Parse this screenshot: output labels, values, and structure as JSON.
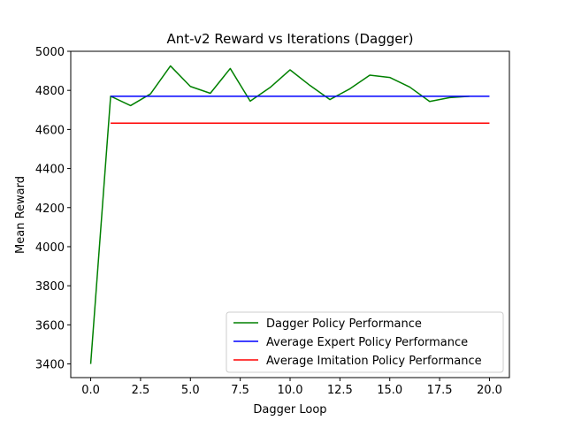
{
  "chart_data": {
    "type": "line",
    "title": "Ant-v2 Reward vs Iterations (Dagger)",
    "xlabel": "Dagger Loop",
    "ylabel": "Mean Reward",
    "xlim": [
      -1,
      21
    ],
    "ylim": [
      3330,
      5000
    ],
    "x_ticks": [
      0.0,
      2.5,
      5.0,
      7.5,
      10.0,
      12.5,
      15.0,
      17.5,
      20.0
    ],
    "x_tick_labels": [
      "0.0",
      "2.5",
      "5.0",
      "7.5",
      "10.0",
      "12.5",
      "15.0",
      "17.5",
      "20.0"
    ],
    "y_ticks": [
      3400,
      3600,
      3800,
      4000,
      4200,
      4400,
      4600,
      4800,
      5000
    ],
    "y_tick_labels": [
      "3400",
      "3600",
      "3800",
      "4000",
      "4200",
      "4400",
      "4600",
      "4800",
      "5000"
    ],
    "grid": false,
    "legend_position": "lower-right",
    "series": [
      {
        "name": "Dagger Policy Performance",
        "color": "#008000",
        "x": [
          0,
          1,
          2,
          3,
          4,
          5,
          6,
          7,
          8,
          9,
          10,
          11,
          12,
          13,
          14,
          15,
          16,
          17,
          18,
          19
        ],
        "y": [
          3400,
          4770,
          4722,
          4782,
          4925,
          4820,
          4785,
          4912,
          4745,
          4815,
          4905,
          4825,
          4753,
          4808,
          4878,
          4866,
          4817,
          4743,
          4763,
          4770
        ]
      },
      {
        "name": "Average Expert Policy Performance",
        "color": "#0000ff",
        "x": [
          1,
          20
        ],
        "y": [
          4770,
          4770
        ]
      },
      {
        "name": "Average Imitation Policy Performance",
        "color": "#ff0000",
        "x": [
          1,
          20
        ],
        "y": [
          4632,
          4632
        ]
      }
    ]
  }
}
